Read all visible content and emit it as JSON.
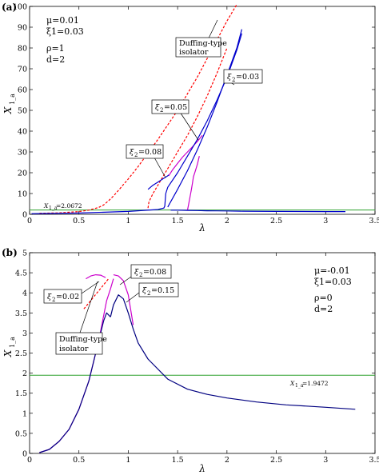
{
  "chart_data": [
    {
      "type": "line",
      "panel_label": "(a)",
      "xlabel": "λ",
      "ylabel": "X",
      "ylabel_sub": "1_a",
      "xlim": [
        0,
        3.5
      ],
      "ylim": [
        0,
        100
      ],
      "x_ticks": [
        "0",
        "0.5",
        "1",
        "1.5",
        "2",
        "2.5",
        "3",
        "3.5"
      ],
      "y_ticks": [
        "0",
        "10",
        "20",
        "30",
        "40",
        "50",
        "60",
        "70",
        "80",
        "90",
        "100"
      ],
      "params": [
        "μ=0.01",
        "ξ1=0.03",
        "ρ=1",
        "d=2"
      ],
      "reference": {
        "label": "X1_a=2.0672",
        "label_main": "X",
        "label_sub": "1_a",
        "label_rest": "=2.0672",
        "y": 2.0672,
        "color": "#2ca02c"
      },
      "annotations": [
        {
          "text": "Duffing-type isolator",
          "lines": [
            "Duffing-type",
            "isolator"
          ]
        },
        {
          "text": "ξ2=0.03",
          "pre": "ξ",
          "sub": "2",
          "post": "=0.03"
        },
        {
          "text": "ξ2=0.05",
          "pre": "ξ",
          "sub": "2",
          "post": "=0.05"
        },
        {
          "text": "ξ2=0.08",
          "pre": "ξ",
          "sub": "2",
          "post": "=0.08"
        }
      ],
      "series": [
        {
          "color": "#ff0000",
          "dash": "3,2",
          "x": [
            0.1,
            0.3,
            0.5,
            0.6,
            0.7,
            0.75,
            0.8,
            0.85,
            0.9,
            1.0,
            1.1,
            1.2,
            1.3,
            1.4,
            1.5,
            1.6,
            1.7,
            1.8,
            1.9,
            2.0,
            2.1
          ],
          "y": [
            0.5,
            0.7,
            1.3,
            2.0,
            3.3,
            4.5,
            6.5,
            8.8,
            11.5,
            17,
            23,
            29.5,
            36,
            43,
            50,
            58,
            66,
            75,
            84,
            93,
            101
          ]
        },
        {
          "color": "#ff0000",
          "dash": "3,2",
          "x": [
            1.2,
            1.21,
            1.25,
            1.3,
            1.35,
            1.4,
            1.5,
            1.6,
            1.7,
            1.8,
            1.9,
            2.0
          ],
          "y": [
            3,
            6,
            10,
            14,
            18,
            22,
            30,
            38,
            47,
            57,
            68,
            80
          ]
        },
        {
          "color": "#cc00cc",
          "x": [
            1.6,
            1.62,
            1.64,
            1.65,
            1.66,
            1.68,
            1.7,
            1.72
          ],
          "y": [
            2,
            7,
            12,
            15,
            18,
            21,
            24,
            28
          ]
        },
        {
          "color": "#cc00cc",
          "x": [
            1.41,
            1.45,
            1.5,
            1.55,
            1.6,
            1.65,
            1.7,
            1.75
          ],
          "y": [
            18.5,
            21.5,
            24.5,
            27.5,
            30,
            32.5,
            35,
            38
          ]
        },
        {
          "color": "#0000cc",
          "x": [
            0.02,
            0.5,
            1.0,
            1.3,
            1.36,
            1.37,
            1.38
          ],
          "y": [
            0.3,
            0.6,
            1.4,
            2.3,
            3.0,
            4.0,
            10
          ]
        },
        {
          "color": "#0000cc",
          "x": [
            1.2,
            1.25,
            1.3,
            1.35,
            1.4,
            1.41
          ],
          "y": [
            12,
            14,
            15.5,
            17,
            18.5,
            19
          ]
        },
        {
          "color": "#0000cc",
          "x": [
            1.43,
            1.5,
            1.6,
            1.7,
            1.8,
            1.9,
            2.0,
            2.1,
            2.15
          ],
          "y": [
            2,
            2.0,
            1.9,
            1.8,
            1.7,
            1.65,
            1.6,
            1.55,
            1.5
          ]
        },
        {
          "color": "#0000cc",
          "x": [
            1.4,
            1.5,
            1.6,
            1.7,
            1.8,
            1.9,
            2.0,
            2.1,
            2.15
          ],
          "y": [
            3.5,
            12,
            21,
            31,
            42,
            54,
            67,
            80,
            89
          ]
        },
        {
          "color": "#0000cc",
          "x": [
            1.38,
            1.4,
            1.5,
            1.6,
            1.7,
            1.8,
            1.9,
            2.0,
            2.1,
            2.15
          ],
          "y": [
            10,
            13,
            20,
            28,
            36,
            45,
            55,
            66,
            79,
            87
          ]
        },
        {
          "color": "#0000cc",
          "x": [
            2.15,
            2.5,
            3.0,
            3.2
          ],
          "y": [
            1.5,
            1.4,
            1.3,
            1.3
          ]
        }
      ]
    },
    {
      "type": "line",
      "panel_label": "(b)",
      "xlabel": "λ",
      "ylabel": "X",
      "ylabel_sub": "1_a",
      "xlim": [
        0,
        3.5
      ],
      "ylim": [
        0,
        5
      ],
      "x_ticks": [
        "0",
        "0.5",
        "1",
        "1.5",
        "2",
        "2.5",
        "3",
        "3.5"
      ],
      "y_ticks": [
        "0",
        "0.5",
        "1",
        "1.5",
        "2",
        "2.5",
        "3",
        "3.5",
        "4",
        "4.5",
        "5"
      ],
      "params": [
        "μ=-0.01",
        "ξ1=0.03",
        "ρ=0",
        "d=2"
      ],
      "reference": {
        "label": "X1_a=1.9472",
        "label_main": "X",
        "label_sub": "1_a",
        "label_rest": "=1.9472",
        "y": 1.9472,
        "color": "#2ca02c"
      },
      "annotations": [
        {
          "text": "ξ2=0.02",
          "pre": "ξ",
          "sub": "2",
          "post": "=0.02"
        },
        {
          "text": "ξ2=0.08",
          "pre": "ξ",
          "sub": "2",
          "post": "=0.08"
        },
        {
          "text": "ξ2=0.15",
          "pre": "ξ",
          "sub": "2",
          "post": "=0.15"
        },
        {
          "text": "Duffing-type isolator",
          "lines": [
            "Duffing-type",
            "isolator"
          ]
        }
      ],
      "series": [
        {
          "color": "#ff0000",
          "dash": "3,2",
          "x": [
            0.55,
            0.6,
            0.65,
            0.7,
            0.75,
            0.8
          ],
          "y": [
            3.6,
            3.75,
            3.9,
            4.05,
            4.2,
            4.35
          ]
        },
        {
          "color": "#cc00cc",
          "x": [
            0.1,
            0.2,
            0.3,
            0.4,
            0.5,
            0.6,
            0.7,
            0.78,
            0.82,
            0.85
          ],
          "y": [
            0.02,
            0.1,
            0.3,
            0.6,
            1.1,
            1.8,
            2.8,
            3.8,
            4.1,
            4.35
          ]
        },
        {
          "color": "#cc00cc",
          "x": [
            0.85,
            0.9,
            0.95,
            1.0,
            1.05
          ],
          "y": [
            4.45,
            4.42,
            4.3,
            3.95,
            3.2
          ]
        },
        {
          "color": "#cc00cc",
          "x": [
            0.57,
            0.62,
            0.67,
            0.72,
            0.77
          ],
          "y": [
            4.35,
            4.42,
            4.45,
            4.44,
            4.38
          ]
        },
        {
          "color": "#000080",
          "x": [
            0.1,
            0.2,
            0.3,
            0.4,
            0.5,
            0.6,
            0.7,
            0.75,
            0.78,
            0.82
          ],
          "y": [
            0.02,
            0.1,
            0.3,
            0.6,
            1.1,
            1.8,
            2.8,
            3.3,
            3.5,
            3.4
          ]
        },
        {
          "color": "#000080",
          "x": [
            0.82,
            0.85,
            0.9,
            0.95,
            1.0,
            1.05,
            1.1,
            1.2,
            1.4,
            1.6,
            1.8,
            2.0,
            2.3,
            2.6,
            3.0,
            3.3
          ],
          "y": [
            3.4,
            3.7,
            3.95,
            3.85,
            3.5,
            3.1,
            2.75,
            2.35,
            1.85,
            1.6,
            1.47,
            1.38,
            1.28,
            1.21,
            1.15,
            1.1
          ]
        }
      ]
    }
  ]
}
